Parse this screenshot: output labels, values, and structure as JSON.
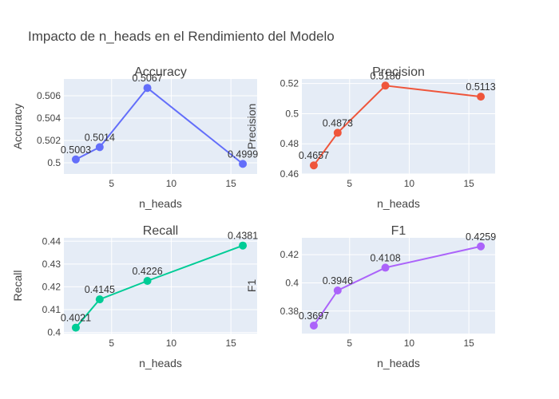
{
  "figure": {
    "title": "Impacto de n_heads en el Rendimiento del Modelo"
  },
  "chart_data": [
    {
      "type": "line",
      "title": "Accuracy",
      "xlabel": "n_heads",
      "ylabel": "Accuracy",
      "x": [
        2,
        4,
        8,
        16
      ],
      "values": [
        0.5003,
        0.5014,
        0.5067,
        0.4999
      ],
      "labels": [
        "0.5003",
        "0.5014",
        "0.5067",
        "0.4999"
      ],
      "color": "#636efa",
      "xlim": [
        1.0,
        17.2
      ],
      "ylim": [
        0.499,
        0.5075
      ],
      "xticks": [
        5,
        10,
        15
      ],
      "xtick_labels": [
        "5",
        "10",
        "15"
      ],
      "yticks": [
        0.5,
        0.502,
        0.504,
        0.506
      ],
      "ytick_labels": [
        "0.5",
        "0.502",
        "0.504",
        "0.506"
      ]
    },
    {
      "type": "line",
      "title": "Precision",
      "xlabel": "n_heads",
      "ylabel": "Precision",
      "x": [
        2,
        4,
        8,
        16
      ],
      "values": [
        0.4657,
        0.4873,
        0.5186,
        0.5113
      ],
      "labels": [
        "0.4657",
        "0.4873",
        "0.5186",
        "0.5113"
      ],
      "color": "#ef553b",
      "xlim": [
        1.0,
        17.2
      ],
      "ylim": [
        0.46,
        0.523
      ],
      "xticks": [
        5,
        10,
        15
      ],
      "xtick_labels": [
        "5",
        "10",
        "15"
      ],
      "yticks": [
        0.46,
        0.48,
        0.5,
        0.52
      ],
      "ytick_labels": [
        "0.46",
        "0.48",
        "0.5",
        "0.52"
      ]
    },
    {
      "type": "line",
      "title": "Recall",
      "xlabel": "n_heads",
      "ylabel": "Recall",
      "x": [
        2,
        4,
        8,
        16
      ],
      "values": [
        0.4021,
        0.4145,
        0.4226,
        0.4381
      ],
      "labels": [
        "0.4021",
        "0.4145",
        "0.4226",
        "0.4381"
      ],
      "color": "#00cc96",
      "xlim": [
        1.0,
        17.2
      ],
      "ylim": [
        0.3995,
        0.4415
      ],
      "xticks": [
        5,
        10,
        15
      ],
      "xtick_labels": [
        "5",
        "10",
        "15"
      ],
      "yticks": [
        0.4,
        0.41,
        0.42,
        0.43,
        0.44
      ],
      "ytick_labels": [
        "0.4",
        "0.41",
        "0.42",
        "0.43",
        "0.44"
      ]
    },
    {
      "type": "line",
      "title": "F1",
      "xlabel": "n_heads",
      "ylabel": "F1",
      "x": [
        2,
        4,
        8,
        16
      ],
      "values": [
        0.3697,
        0.3946,
        0.4108,
        0.4259
      ],
      "labels": [
        "0.3697",
        "0.3946",
        "0.4108",
        "0.4259"
      ],
      "color": "#ab63fa",
      "xlim": [
        1.0,
        17.2
      ],
      "ylim": [
        0.364,
        0.432
      ],
      "xticks": [
        5,
        10,
        15
      ],
      "xtick_labels": [
        "5",
        "10",
        "15"
      ],
      "yticks": [
        0.38,
        0.4,
        0.42
      ],
      "ytick_labels": [
        "0.38",
        "0.4",
        "0.42"
      ]
    }
  ]
}
